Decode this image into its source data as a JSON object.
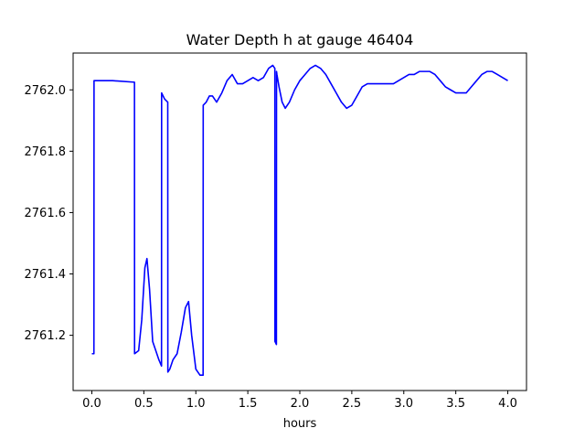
{
  "chart_data": {
    "type": "line",
    "title": "Water Depth h at gauge 46404",
    "xlabel": "hours",
    "ylabel": "",
    "xlim": [
      -0.18,
      4.18
    ],
    "ylim": [
      2761.02,
      2762.12
    ],
    "xticks": [
      0.0,
      0.5,
      1.0,
      1.5,
      2.0,
      2.5,
      3.0,
      3.5,
      4.0
    ],
    "xtick_labels": [
      "0.0",
      "0.5",
      "1.0",
      "1.5",
      "2.0",
      "2.5",
      "3.0",
      "3.5",
      "4.0"
    ],
    "yticks": [
      2761.2,
      2761.4,
      2761.6,
      2761.8,
      2762.0
    ],
    "ytick_labels": [
      "2761.2",
      "2761.4",
      "2761.6",
      "2761.8",
      "2762.0"
    ],
    "grid": false,
    "series": [
      {
        "color": "#0000ff",
        "x": [
          0.0,
          0.02,
          0.021,
          0.2,
          0.41,
          0.411,
          0.45,
          0.48,
          0.51,
          0.53,
          0.555,
          0.585,
          0.615,
          0.645,
          0.67,
          0.671,
          0.7,
          0.73,
          0.731,
          0.75,
          0.78,
          0.82,
          0.86,
          0.9,
          0.93,
          0.96,
          1.0,
          1.04,
          1.07,
          1.071,
          1.1,
          1.13,
          1.16,
          1.2,
          1.25,
          1.3,
          1.35,
          1.4,
          1.45,
          1.5,
          1.55,
          1.6,
          1.65,
          1.7,
          1.74,
          1.76,
          1.761,
          1.775,
          1.776,
          1.78,
          1.8,
          1.83,
          1.86,
          1.9,
          1.95,
          2.0,
          2.05,
          2.1,
          2.15,
          2.2,
          2.25,
          2.3,
          2.35,
          2.4,
          2.45,
          2.5,
          2.55,
          2.6,
          2.65,
          2.7,
          2.75,
          2.8,
          2.85,
          2.9,
          2.95,
          3.0,
          3.05,
          3.1,
          3.15,
          3.2,
          3.25,
          3.3,
          3.35,
          3.4,
          3.45,
          3.5,
          3.55,
          3.6,
          3.65,
          3.7,
          3.75,
          3.8,
          3.85,
          3.9,
          3.95,
          4.0
        ],
        "y": [
          2761.14,
          2761.14,
          2762.03,
          2762.03,
          2762.025,
          2761.14,
          2761.15,
          2761.25,
          2761.42,
          2761.45,
          2761.35,
          2761.18,
          2761.15,
          2761.12,
          2761.1,
          2761.99,
          2761.97,
          2761.96,
          2761.08,
          2761.09,
          2761.12,
          2761.14,
          2761.21,
          2761.29,
          2761.31,
          2761.2,
          2761.09,
          2761.07,
          2761.07,
          2761.95,
          2761.96,
          2761.98,
          2761.98,
          2761.96,
          2761.99,
          2762.03,
          2762.05,
          2762.02,
          2762.02,
          2762.03,
          2762.04,
          2762.03,
          2762.04,
          2762.07,
          2762.08,
          2762.07,
          2761.18,
          2761.17,
          2762.06,
          2762.05,
          2762.01,
          2761.96,
          2761.94,
          2761.96,
          2762.0,
          2762.03,
          2762.05,
          2762.07,
          2762.08,
          2762.07,
          2762.05,
          2762.02,
          2761.99,
          2761.96,
          2761.94,
          2761.95,
          2761.98,
          2762.01,
          2762.02,
          2762.02,
          2762.02,
          2762.02,
          2762.02,
          2762.02,
          2762.03,
          2762.04,
          2762.05,
          2762.05,
          2762.06,
          2762.06,
          2762.06,
          2762.05,
          2762.03,
          2762.01,
          2762.0,
          2761.99,
          2761.99,
          2761.99,
          2762.01,
          2762.03,
          2762.05,
          2762.06,
          2762.06,
          2762.05,
          2762.04,
          2762.03
        ]
      }
    ]
  }
}
